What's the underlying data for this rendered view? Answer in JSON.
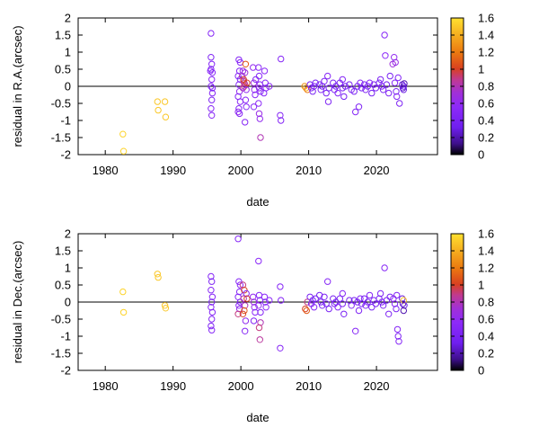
{
  "chart_data": [
    {
      "type": "scatter",
      "ylabel": "residual in R.A.(arcsec)",
      "xlabel": "date",
      "xlim": [
        1976,
        2029
      ],
      "ylim": [
        -2,
        2
      ],
      "xticks": [
        1980,
        1990,
        2000,
        2010,
        2020
      ],
      "yticks": [
        -2,
        -1.5,
        -1,
        -0.5,
        0,
        0.5,
        1,
        1.5,
        2
      ],
      "zero_line": true,
      "grid": false,
      "colorbar": {
        "min": 0,
        "max": 1.6,
        "ticks": [
          0,
          0.2,
          0.4,
          0.6,
          0.8,
          1,
          1.2,
          1.4,
          1.6
        ],
        "palette": "black-purple-red-orange-yellow"
      },
      "points": [
        [
          1982.6,
          -1.4,
          1.55
        ],
        [
          1982.7,
          -1.9,
          1.55
        ],
        [
          1987.7,
          -0.45,
          1.5
        ],
        [
          1987.8,
          -0.7,
          1.5
        ],
        [
          1988.8,
          -0.45,
          1.5
        ],
        [
          1988.9,
          -0.9,
          1.5
        ],
        [
          1995.6,
          1.55,
          0.5
        ],
        [
          1995.6,
          0.85,
          0.45
        ],
        [
          1995.7,
          0.65,
          0.5
        ],
        [
          1995.6,
          0.5,
          0.45
        ],
        [
          1995.8,
          0.4,
          0.5
        ],
        [
          1995.7,
          0.2,
          0.55
        ],
        [
          1995.6,
          0.0,
          0.5
        ],
        [
          1995.8,
          -0.2,
          0.5
        ],
        [
          1995.7,
          -0.4,
          0.45
        ],
        [
          1995.6,
          -0.65,
          0.5
        ],
        [
          1995.7,
          -0.85,
          0.5
        ],
        [
          1995.5,
          0.45,
          0.55
        ],
        [
          1995.8,
          -0.05,
          0.45
        ],
        [
          1999.7,
          0.78,
          0.5
        ],
        [
          1999.9,
          0.7,
          0.55
        ],
        [
          1999.8,
          0.45,
          0.5
        ],
        [
          1999.6,
          0.3,
          0.5
        ],
        [
          1999.9,
          0.2,
          0.45
        ],
        [
          1999.7,
          0.05,
          0.5
        ],
        [
          1999.8,
          -0.15,
          0.6
        ],
        [
          1999.6,
          -0.3,
          0.5
        ],
        [
          1999.9,
          -0.45,
          0.55
        ],
        [
          1999.7,
          -0.65,
          0.5
        ],
        [
          1999.8,
          -0.8,
          0.5
        ],
        [
          1999.6,
          -0.75,
          0.6
        ],
        [
          2000.2,
          0.3,
          0.8
        ],
        [
          2000.4,
          0.15,
          0.85
        ],
        [
          2000.5,
          0.1,
          0.9
        ],
        [
          2000.6,
          0.05,
          0.85
        ],
        [
          2000.3,
          -0.05,
          0.8
        ],
        [
          2000.5,
          0.0,
          0.9
        ],
        [
          2000.4,
          0.2,
          1.0
        ],
        [
          2000.7,
          0.65,
          1.1
        ],
        [
          2000.6,
          0.4,
          0.7
        ],
        [
          2000.8,
          -0.1,
          0.6
        ],
        [
          2000.7,
          -0.4,
          0.55
        ],
        [
          2000.8,
          -0.6,
          0.5
        ],
        [
          2000.6,
          -1.05,
          0.5
        ],
        [
          2000.9,
          0.1,
          1.0
        ],
        [
          2000.3,
          0.45,
          0.65
        ],
        [
          2001.8,
          0.55,
          0.6
        ],
        [
          2001.9,
          0.1,
          0.7
        ],
        [
          2002.0,
          -0.1,
          0.6
        ],
        [
          2002.1,
          -0.25,
          0.55
        ],
        [
          2001.9,
          -0.6,
          0.5
        ],
        [
          2002.2,
          0.2,
          0.5
        ],
        [
          2002.6,
          0.55,
          0.55
        ],
        [
          2002.7,
          0.3,
          0.5
        ],
        [
          2002.8,
          0.05,
          0.55
        ],
        [
          2002.7,
          -0.05,
          0.6
        ],
        [
          2002.9,
          -0.15,
          0.5
        ],
        [
          2002.6,
          -0.5,
          0.55
        ],
        [
          2002.8,
          -0.95,
          0.6
        ],
        [
          2002.9,
          -1.5,
          0.8
        ],
        [
          2002.7,
          -0.8,
          0.65
        ],
        [
          2003.5,
          0.45,
          0.55
        ],
        [
          2003.6,
          0.1,
          0.5
        ],
        [
          2003.7,
          -0.05,
          0.55
        ],
        [
          2003.4,
          -0.2,
          0.5
        ],
        [
          2004.2,
          0.0,
          0.55
        ],
        [
          2005.9,
          0.8,
          0.5
        ],
        [
          2005.8,
          -0.85,
          0.5
        ],
        [
          2005.9,
          -1.0,
          0.5
        ],
        [
          2009.4,
          0.0,
          1.3
        ],
        [
          2009.6,
          -0.05,
          1.4
        ],
        [
          2009.8,
          -0.1,
          1.2
        ],
        [
          2010.2,
          0.05,
          0.4
        ],
        [
          2010.4,
          -0.05,
          0.45
        ],
        [
          2010.6,
          -0.15,
          0.4
        ],
        [
          2010.8,
          0.0,
          0.5
        ],
        [
          2011.0,
          0.1,
          0.4
        ],
        [
          2011.6,
          0.05,
          0.4
        ],
        [
          2011.8,
          -0.1,
          0.45
        ],
        [
          2012.0,
          0.0,
          0.4
        ],
        [
          2012.3,
          0.15,
          0.45
        ],
        [
          2012.6,
          -0.2,
          0.4
        ],
        [
          2012.8,
          0.3,
          0.5
        ],
        [
          2013.0,
          -0.05,
          0.4
        ],
        [
          2012.9,
          -0.45,
          0.45
        ],
        [
          2013.6,
          0.1,
          0.4
        ],
        [
          2013.8,
          -0.1,
          0.45
        ],
        [
          2014.0,
          0.0,
          0.4
        ],
        [
          2014.3,
          -0.2,
          0.5
        ],
        [
          2014.6,
          0.1,
          0.4
        ],
        [
          2015.0,
          -0.05,
          0.45
        ],
        [
          2015.0,
          0.2,
          0.5
        ],
        [
          2015.2,
          -0.3,
          0.4
        ],
        [
          2015.4,
          0.0,
          0.4
        ],
        [
          2016.0,
          0.05,
          0.4
        ],
        [
          2016.3,
          -0.1,
          0.45
        ],
        [
          2016.7,
          -0.15,
          0.4
        ],
        [
          2016.9,
          -0.75,
          0.5
        ],
        [
          2017.2,
          0.0,
          0.4
        ],
        [
          2017.4,
          -0.6,
          0.45
        ],
        [
          2017.6,
          0.1,
          0.5
        ],
        [
          2017.8,
          -0.05,
          0.4
        ],
        [
          2018.2,
          0.05,
          0.4
        ],
        [
          2018.4,
          -0.1,
          0.45
        ],
        [
          2018.7,
          0.0,
          0.4
        ],
        [
          2019.0,
          0.1,
          0.5
        ],
        [
          2019.3,
          -0.2,
          0.4
        ],
        [
          2019.6,
          0.05,
          0.45
        ],
        [
          2019.9,
          -0.05,
          0.4
        ],
        [
          2020.4,
          0.1,
          0.4
        ],
        [
          2020.6,
          0.2,
          0.45
        ],
        [
          2020.8,
          0.0,
          0.5
        ],
        [
          2021.0,
          -0.1,
          0.4
        ],
        [
          2021.2,
          1.5,
          0.5
        ],
        [
          2021.3,
          0.9,
          0.55
        ],
        [
          2021.5,
          0.05,
          0.4
        ],
        [
          2021.8,
          -0.2,
          0.45
        ],
        [
          2022.0,
          0.3,
          0.4
        ],
        [
          2022.4,
          0.65,
          0.7
        ],
        [
          2022.6,
          0.85,
          0.6
        ],
        [
          2022.8,
          0.7,
          0.65
        ],
        [
          2022.7,
          0.1,
          0.5
        ],
        [
          2022.9,
          -0.15,
          0.45
        ],
        [
          2023.2,
          0.25,
          0.5
        ],
        [
          2023.4,
          -0.5,
          0.45
        ],
        [
          2023.0,
          -0.3,
          0.5
        ],
        [
          2023.8,
          0.05,
          0.3
        ],
        [
          2023.9,
          -0.05,
          0.25
        ],
        [
          2024.0,
          0.0,
          0.3
        ],
        [
          2024.1,
          0.08,
          0.2
        ],
        [
          2024.0,
          -0.1,
          0.3
        ]
      ]
    },
    {
      "type": "scatter",
      "ylabel": "residual in Dec.(arcsec)",
      "xlabel": "date",
      "xlim": [
        1976,
        2029
      ],
      "ylim": [
        -2,
        2
      ],
      "xticks": [
        1980,
        1990,
        2000,
        2010,
        2020
      ],
      "yticks": [
        -2,
        -1.5,
        -1,
        -0.5,
        0,
        0.5,
        1,
        1.5,
        2
      ],
      "zero_line": true,
      "grid": false,
      "colorbar": {
        "min": 0,
        "max": 1.6,
        "ticks": [
          0,
          0.2,
          0.4,
          0.6,
          0.8,
          1,
          1.2,
          1.4,
          1.6
        ],
        "palette": "black-purple-red-orange-yellow"
      },
      "points": [
        [
          1982.6,
          0.3,
          1.55
        ],
        [
          1982.7,
          -0.3,
          1.55
        ],
        [
          1987.7,
          0.82,
          1.5
        ],
        [
          1987.8,
          0.72,
          1.5
        ],
        [
          1988.8,
          -0.1,
          1.5
        ],
        [
          1988.9,
          -0.18,
          1.5
        ],
        [
          1995.6,
          0.75,
          0.5
        ],
        [
          1995.7,
          0.6,
          0.45
        ],
        [
          1995.6,
          0.35,
          0.5
        ],
        [
          1995.8,
          0.15,
          0.5
        ],
        [
          1995.7,
          0.0,
          0.45
        ],
        [
          1995.6,
          -0.15,
          0.5
        ],
        [
          1995.8,
          -0.3,
          0.5
        ],
        [
          1995.7,
          -0.5,
          0.5
        ],
        [
          1995.6,
          -0.7,
          0.45
        ],
        [
          1995.7,
          -0.82,
          0.5
        ],
        [
          1999.6,
          1.85,
          0.5
        ],
        [
          1999.7,
          0.6,
          0.5
        ],
        [
          1999.9,
          0.5,
          0.55
        ],
        [
          1999.8,
          0.3,
          0.5
        ],
        [
          1999.6,
          0.15,
          0.5
        ],
        [
          1999.9,
          0.0,
          0.45
        ],
        [
          1999.7,
          -0.1,
          0.55
        ],
        [
          1999.8,
          -0.2,
          0.6
        ],
        [
          1999.6,
          -0.35,
          0.9
        ],
        [
          2000.3,
          0.5,
          0.9
        ],
        [
          2000.5,
          0.35,
          1.0
        ],
        [
          2000.4,
          0.1,
          0.85
        ],
        [
          2000.6,
          -0.1,
          0.8
        ],
        [
          2000.5,
          -0.25,
          1.1
        ],
        [
          2000.3,
          -0.35,
          1.0
        ],
        [
          2000.7,
          -0.55,
          0.6
        ],
        [
          2000.6,
          -0.85,
          0.5
        ],
        [
          2000.8,
          0.25,
          0.5
        ],
        [
          2000.9,
          0.1,
          1.0
        ],
        [
          2001.8,
          0.15,
          0.6
        ],
        [
          2001.9,
          0.0,
          0.7
        ],
        [
          2002.0,
          -0.15,
          0.6
        ],
        [
          2002.1,
          -0.3,
          0.55
        ],
        [
          2001.9,
          -0.55,
          0.5
        ],
        [
          2002.6,
          1.2,
          0.55
        ],
        [
          2002.7,
          0.2,
          0.5
        ],
        [
          2002.8,
          0.05,
          0.55
        ],
        [
          2002.6,
          -0.1,
          0.6
        ],
        [
          2002.9,
          -0.6,
          0.8
        ],
        [
          2002.7,
          -0.75,
          0.9
        ],
        [
          2002.8,
          -1.1,
          0.85
        ],
        [
          2002.9,
          -0.3,
          0.5
        ],
        [
          2003.5,
          0.15,
          0.55
        ],
        [
          2003.6,
          0.0,
          0.5
        ],
        [
          2003.7,
          -0.15,
          0.55
        ],
        [
          2004.2,
          0.05,
          0.55
        ],
        [
          2005.8,
          0.45,
          0.5
        ],
        [
          2005.9,
          0.05,
          0.5
        ],
        [
          2005.8,
          -1.35,
          0.5
        ],
        [
          2009.5,
          -0.2,
          1.0
        ],
        [
          2009.7,
          -0.25,
          1.1
        ],
        [
          2009.8,
          0.0,
          0.9
        ],
        [
          2010.2,
          0.15,
          0.4
        ],
        [
          2010.4,
          -0.05,
          0.45
        ],
        [
          2010.6,
          0.05,
          0.4
        ],
        [
          2010.8,
          -0.15,
          0.5
        ],
        [
          2011.0,
          0.1,
          0.4
        ],
        [
          2011.6,
          0.2,
          0.4
        ],
        [
          2011.8,
          0.0,
          0.45
        ],
        [
          2012.0,
          -0.1,
          0.4
        ],
        [
          2012.3,
          0.15,
          0.45
        ],
        [
          2012.6,
          -0.05,
          0.4
        ],
        [
          2012.8,
          0.6,
          0.5
        ],
        [
          2013.0,
          -0.2,
          0.4
        ],
        [
          2013.6,
          0.1,
          0.4
        ],
        [
          2013.8,
          -0.05,
          0.45
        ],
        [
          2014.0,
          0.0,
          0.4
        ],
        [
          2014.3,
          -0.15,
          0.5
        ],
        [
          2014.6,
          0.1,
          0.4
        ],
        [
          2015.0,
          -0.05,
          0.45
        ],
        [
          2015.0,
          0.25,
          0.5
        ],
        [
          2015.2,
          -0.35,
          0.4
        ],
        [
          2016.0,
          0.05,
          0.4
        ],
        [
          2016.3,
          -0.1,
          0.45
        ],
        [
          2016.7,
          0.05,
          0.4
        ],
        [
          2016.9,
          -0.85,
          0.5
        ],
        [
          2017.2,
          0.0,
          0.4
        ],
        [
          2017.4,
          -0.25,
          0.45
        ],
        [
          2017.6,
          0.1,
          0.5
        ],
        [
          2017.8,
          -0.05,
          0.4
        ],
        [
          2018.2,
          0.1,
          0.4
        ],
        [
          2018.4,
          -0.1,
          0.45
        ],
        [
          2018.7,
          0.0,
          0.4
        ],
        [
          2019.0,
          0.2,
          0.5
        ],
        [
          2019.3,
          -0.15,
          0.4
        ],
        [
          2019.6,
          0.05,
          0.45
        ],
        [
          2019.9,
          -0.05,
          0.4
        ],
        [
          2020.4,
          0.1,
          0.4
        ],
        [
          2020.6,
          0.25,
          0.45
        ],
        [
          2020.8,
          0.0,
          0.5
        ],
        [
          2021.0,
          -0.1,
          0.4
        ],
        [
          2021.2,
          1.0,
          0.5
        ],
        [
          2021.5,
          0.05,
          0.4
        ],
        [
          2021.8,
          -0.35,
          0.45
        ],
        [
          2022.0,
          0.15,
          0.4
        ],
        [
          2022.5,
          0.1,
          0.6
        ],
        [
          2022.7,
          -0.05,
          0.5
        ],
        [
          2022.9,
          -0.2,
          0.45
        ],
        [
          2023.1,
          -0.8,
          0.5
        ],
        [
          2023.2,
          -1.0,
          0.45
        ],
        [
          2023.3,
          -1.15,
          0.5
        ],
        [
          2023.0,
          0.2,
          0.5
        ],
        [
          2023.8,
          0.1,
          0.3
        ],
        [
          2023.9,
          -0.05,
          0.25
        ],
        [
          2024.0,
          0.05,
          1.5
        ],
        [
          2024.1,
          -0.1,
          0.3
        ],
        [
          2024.0,
          -0.25,
          0.2
        ]
      ]
    }
  ]
}
